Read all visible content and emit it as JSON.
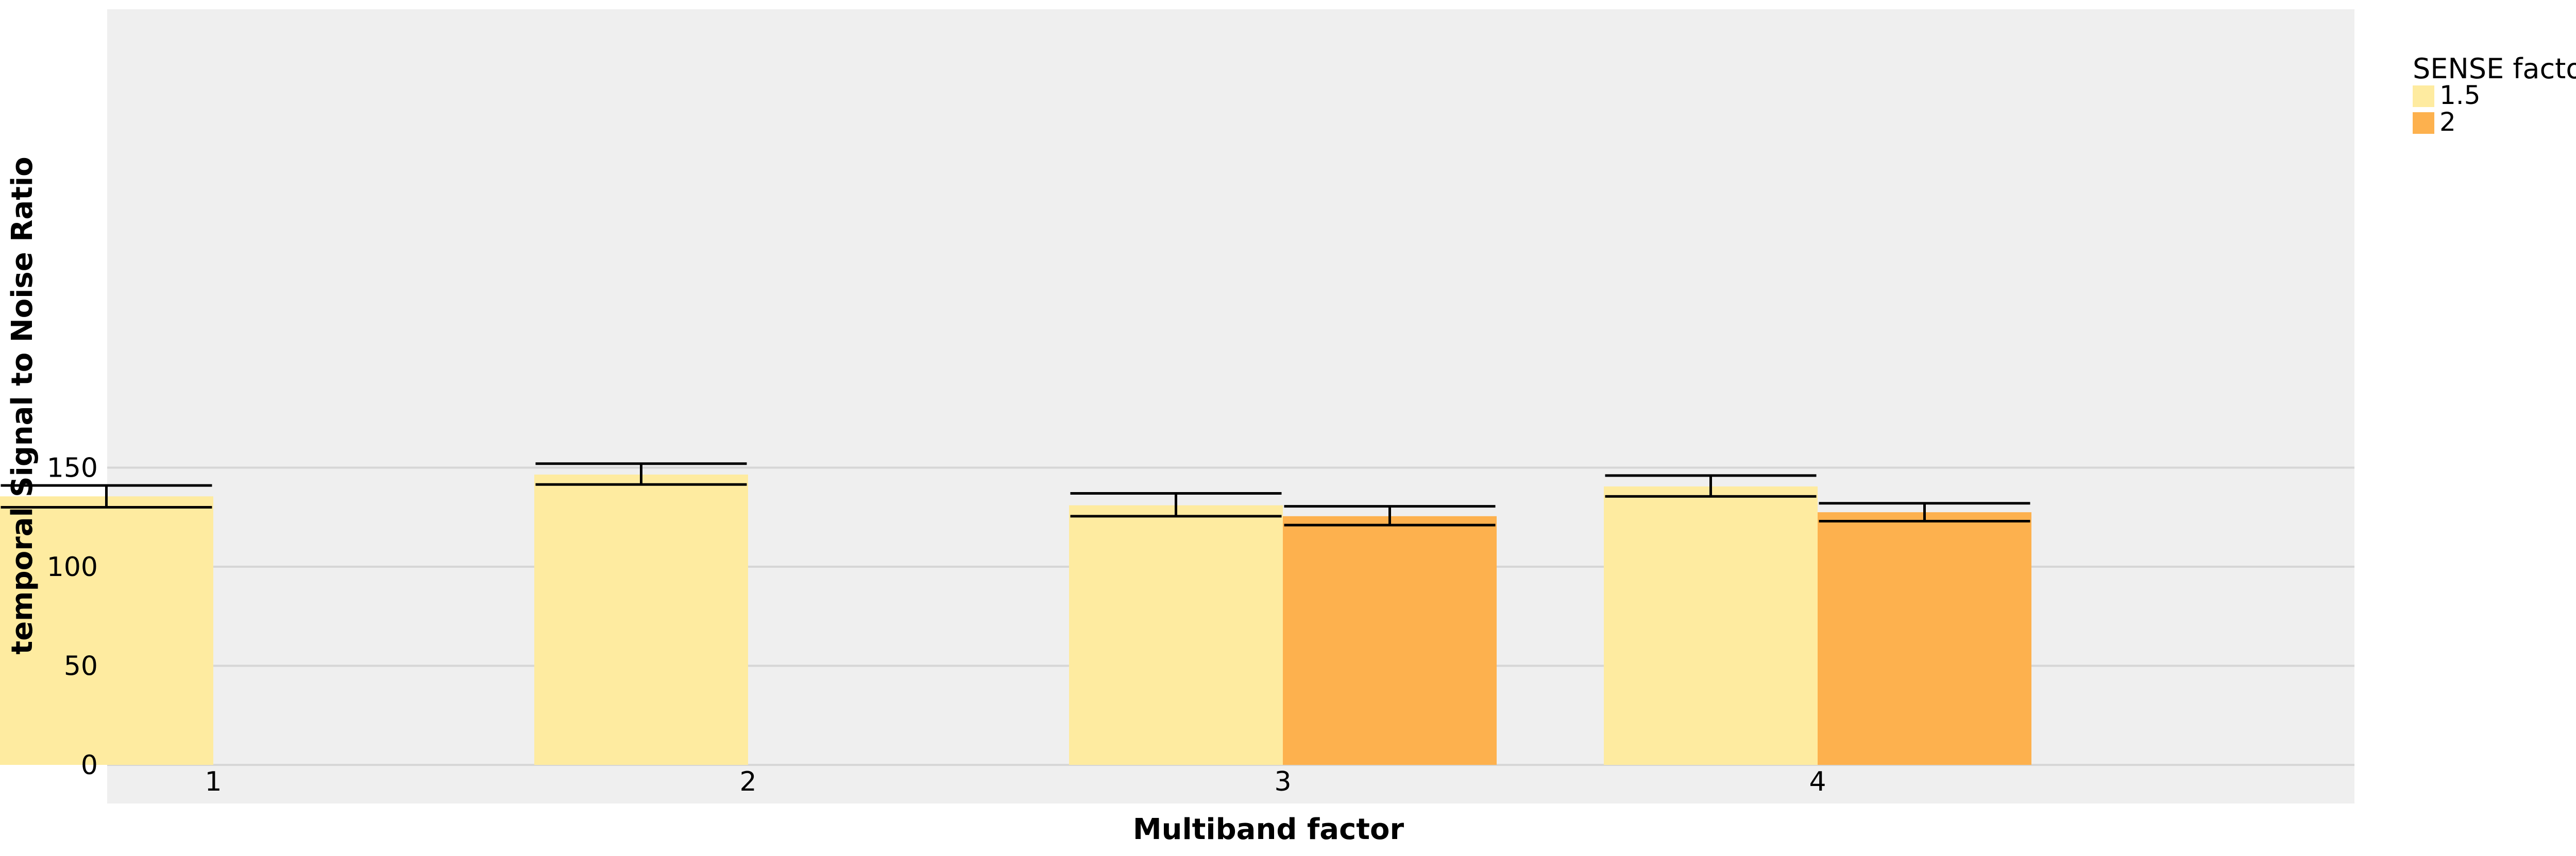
{
  "chart_data": {
    "type": "bar",
    "title": "",
    "xlabel": "Multiband factor",
    "ylabel": "temporal Signal to Noise Ratio",
    "categories": [
      "1",
      "2",
      "3",
      "4"
    ],
    "ylim": [
      0,
      180
    ],
    "yticks": [
      0,
      50,
      100,
      150
    ],
    "grid": true,
    "legend": {
      "title": "SENSE factor",
      "placement": "right"
    },
    "series": [
      {
        "name": "1.5",
        "color": "#feeba0",
        "values": [
          135.5,
          146.5,
          131,
          140.5
        ],
        "error_low": [
          130,
          141.5,
          125.5,
          135.5
        ],
        "error_high": [
          141,
          152,
          137,
          146
        ]
      },
      {
        "name": "2",
        "color": "#fdb14e",
        "values": [
          null,
          null,
          125.5,
          127.5
        ],
        "error_low": [
          null,
          null,
          121,
          123
        ],
        "error_high": [
          null,
          null,
          130.5,
          132
        ]
      }
    ]
  }
}
